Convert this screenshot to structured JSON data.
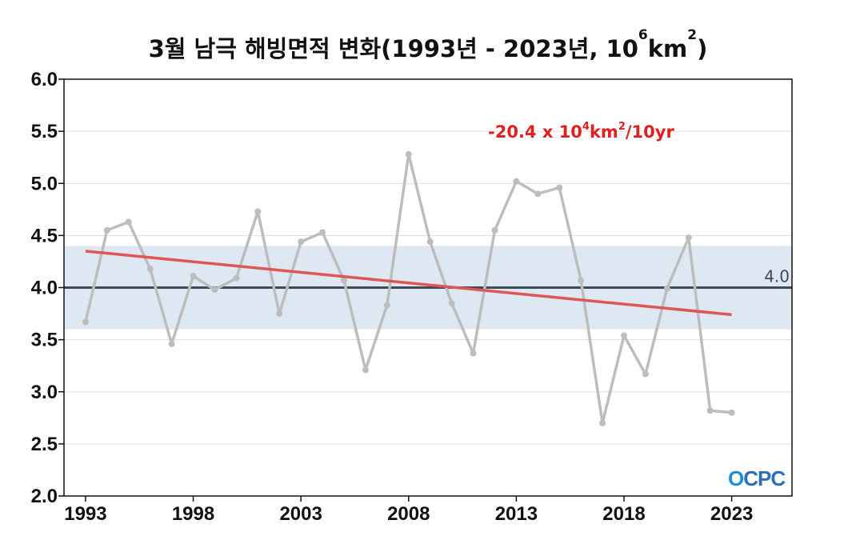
{
  "chart_data": {
    "type": "line",
    "title_parts": {
      "main": "3월 남극 해빙면적 변화(1993년 - 2023년, 10",
      "exp1": "6",
      "mid": "km",
      "exp2": "2",
      "end": ")"
    },
    "xlabel": "",
    "ylabel": "",
    "ylim": [
      2.0,
      6.0
    ],
    "xlim": [
      1992,
      2025.8
    ],
    "yticks": [
      "2.0",
      "2.5",
      "3.0",
      "3.5",
      "4.0",
      "4.5",
      "5.0",
      "5.5",
      "6.0"
    ],
    "xticks": [
      "1993",
      "1998",
      "2003",
      "2008",
      "2013",
      "2018",
      "2023"
    ],
    "grid": true,
    "x": [
      1993,
      1994,
      1995,
      1996,
      1997,
      1998,
      1999,
      2000,
      2001,
      2002,
      2003,
      2004,
      2005,
      2006,
      2007,
      2008,
      2009,
      2010,
      2011,
      2012,
      2013,
      2014,
      2015,
      2016,
      2017,
      2018,
      2019,
      2020,
      2021,
      2022,
      2023
    ],
    "series": [
      {
        "values": [
          3.67,
          4.55,
          4.63,
          4.18,
          3.46,
          4.11,
          3.98,
          4.09,
          4.73,
          3.75,
          4.44,
          4.53,
          4.07,
          3.21,
          3.83,
          5.28,
          4.44,
          3.85,
          3.37,
          4.55,
          5.02,
          4.9,
          4.96,
          4.07,
          2.7,
          3.54,
          3.17,
          3.99,
          4.48,
          2.82,
          2.8
        ],
        "color": "#bdbdbd"
      }
    ],
    "trend": {
      "start": [
        1993,
        4.35
      ],
      "end": [
        2023,
        3.74
      ],
      "color": "#e05555",
      "label_parts": {
        "main": "-20.4 x 10",
        "exp1": "4",
        "mid": "km",
        "exp2": "2",
        "end": "/10yr"
      },
      "label_color": "#e02020"
    },
    "reference_line": {
      "value": 4.0,
      "label": "4.0",
      "color": "#3d4a58"
    },
    "band": {
      "low": 3.6,
      "high": 4.4,
      "color": "#dde8f2"
    }
  },
  "logo": {
    "text_o": "O",
    "text_rest": "CPC"
  }
}
